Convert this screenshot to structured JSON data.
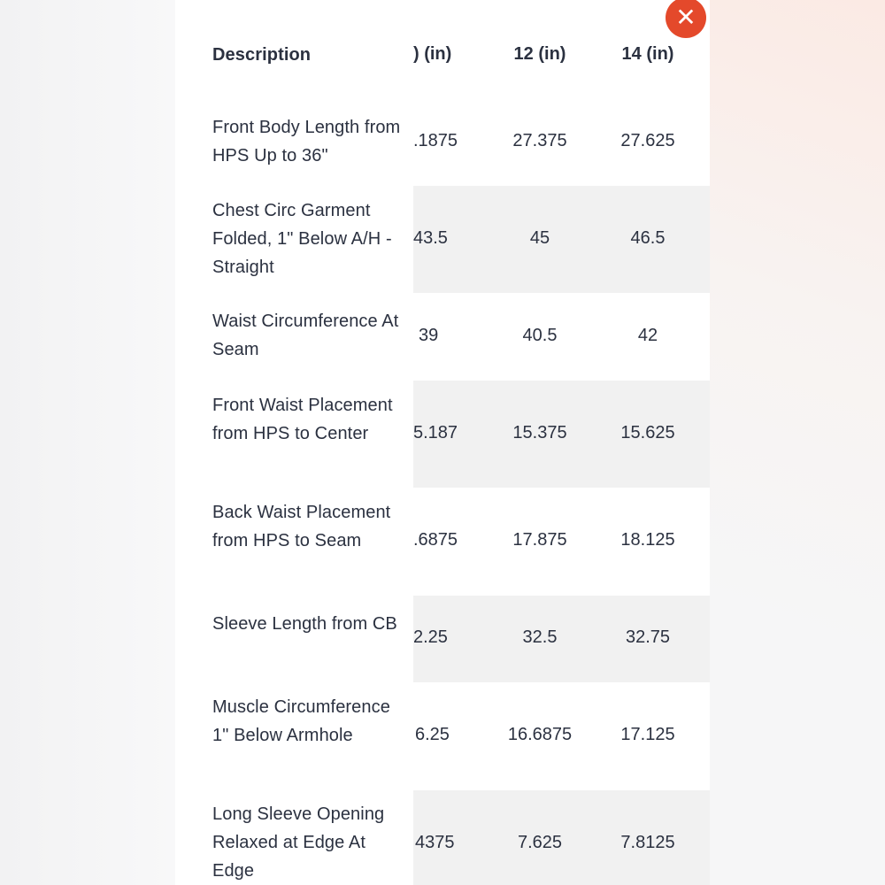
{
  "close_icon": "close-x-icon",
  "colors": {
    "accent": "#e4492b",
    "stripe": "#f1f1f1",
    "text": "#2b3140"
  },
  "table": {
    "headers": [
      "Description",
      ") (in)",
      "12 (in)",
      "14 (in)"
    ],
    "rows": [
      {
        "desc": "Front Body Length from HPS Up to 36\"",
        "v1": ".1875",
        "v2": "27.375",
        "v3": "27.625"
      },
      {
        "desc": "Chest Circ Garment Folded, 1\" Below A/H - Straight",
        "v1": "43.5",
        "v2": "45",
        "v3": "46.5"
      },
      {
        "desc": "Waist Circumference At Seam",
        "v1": "39",
        "v2": "40.5",
        "v3": "42"
      },
      {
        "desc": "Front Waist Placement from HPS to Center",
        "v1": "5.187",
        "v2": "15.375",
        "v3": "15.625"
      },
      {
        "desc": "Back Waist Placement from HPS to Seam",
        "v1": ".6875",
        "v2": "17.875",
        "v3": "18.125"
      },
      {
        "desc": "Sleeve Length from CB",
        "v1": "2.25",
        "v2": "32.5",
        "v3": "32.75"
      },
      {
        "desc": "Muscle Circumference 1\" Below Armhole",
        "v1": "6.25",
        "v2": "16.6875",
        "v3": "17.125"
      },
      {
        "desc": "Long Sleeve Opening Relaxed at Edge At Edge",
        "v1": "4375",
        "v2": "7.625",
        "v3": "7.8125"
      }
    ]
  }
}
